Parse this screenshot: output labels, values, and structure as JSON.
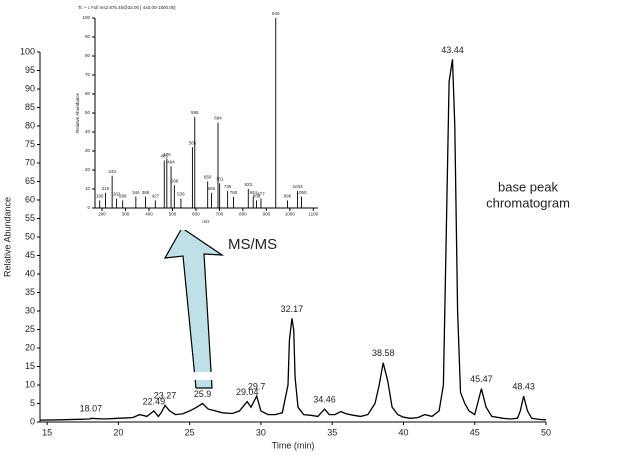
{
  "chart_data": [
    {
      "type": "line",
      "x_label": "Time (min)",
      "y_label": "Relative Abundance",
      "annotation_lines": [
        "base peak",
        "chromatogram"
      ],
      "arrow_label": "MS/MS",
      "xlim": [
        14.5,
        50
      ],
      "xticks": [
        15,
        20,
        25,
        30,
        35,
        40,
        45,
        50
      ],
      "ylim": [
        0,
        100
      ],
      "yticks": [
        0,
        5,
        10,
        15,
        20,
        25,
        30,
        35,
        40,
        45,
        50,
        55,
        60,
        65,
        70,
        75,
        80,
        85,
        90,
        95,
        100
      ],
      "color": "#000000",
      "peak_labels": [
        18.07,
        22.49,
        23.27,
        25.9,
        29.04,
        29.7,
        32.17,
        34.46,
        38.58,
        43.44,
        45.47,
        48.43
      ],
      "x": [
        14.5,
        16,
        18,
        18.07,
        19,
        20,
        21,
        21.5,
        22,
        22.49,
        22.8,
        23.0,
        23.27,
        23.6,
        24,
        24.5,
        25,
        25.5,
        25.9,
        26.3,
        26.8,
        27.3,
        28,
        28.5,
        29.04,
        29.3,
        29.7,
        30.0,
        30.5,
        31,
        31.5,
        31.9,
        32.0,
        32.17,
        32.3,
        32.4,
        32.6,
        33,
        33.5,
        34,
        34.46,
        34.8,
        35.2,
        35.6,
        36,
        36.5,
        37,
        37.5,
        38,
        38.3,
        38.58,
        38.9,
        39.2,
        39.6,
        40,
        40.5,
        41,
        41.5,
        42,
        42.5,
        42.8,
        43.0,
        43.2,
        43.44,
        43.6,
        43.8,
        44.0,
        44.3,
        44.6,
        45,
        45.2,
        45.47,
        45.8,
        46.2,
        47,
        47.5,
        48,
        48.2,
        48.43,
        48.7,
        49,
        49.5,
        50
      ],
      "y": [
        0.5,
        0.6,
        0.8,
        1.0,
        0.8,
        1,
        1.2,
        2,
        1.5,
        3,
        1.5,
        2.5,
        4.5,
        3,
        2,
        2.2,
        3,
        4,
        5,
        3.5,
        3,
        2.5,
        2.3,
        3,
        5.5,
        4,
        7,
        3,
        2,
        2,
        2.5,
        10,
        22,
        28,
        25,
        12,
        4,
        2,
        1.8,
        1.5,
        3.5,
        2,
        2,
        2.8,
        2.2,
        1.8,
        1.5,
        2,
        5,
        10,
        16,
        11,
        4,
        2,
        1.3,
        1,
        1.2,
        2,
        1.5,
        3,
        10,
        50,
        92,
        98,
        80,
        30,
        8,
        5,
        3,
        2,
        5,
        9,
        4,
        1.5,
        1,
        0.8,
        1,
        3,
        7,
        3,
        1,
        0.7,
        0.6
      ]
    },
    {
      "type": "stick",
      "title": "Tc + c Full ms2 876.45@32.00 [ 440.00-1800.00]",
      "x_label": "m/z",
      "y_label": "Relative Abundance",
      "xlim": [
        170,
        1120
      ],
      "xticks": [
        200,
        300,
        400,
        500,
        600,
        700,
        800,
        900,
        1000,
        1100
      ],
      "ylim": [
        0,
        100
      ],
      "yticks": [
        0,
        10,
        20,
        30,
        40,
        50,
        60,
        70,
        80,
        90,
        100
      ],
      "color": "#000000",
      "x": [
        190,
        215,
        243,
        262,
        288,
        344,
        385,
        427,
        465,
        476,
        494,
        508,
        536,
        585,
        595,
        650,
        666,
        694,
        701,
        735,
        760,
        823,
        844,
        858,
        877,
        940,
        990,
        1033,
        1050
      ],
      "y": [
        4,
        8,
        17,
        5,
        4,
        6,
        6,
        4,
        25,
        26,
        22,
        12,
        5,
        32,
        48,
        14,
        8,
        45,
        13,
        9,
        6,
        10,
        6,
        4,
        5,
        100,
        4,
        9,
        6
      ]
    }
  ]
}
